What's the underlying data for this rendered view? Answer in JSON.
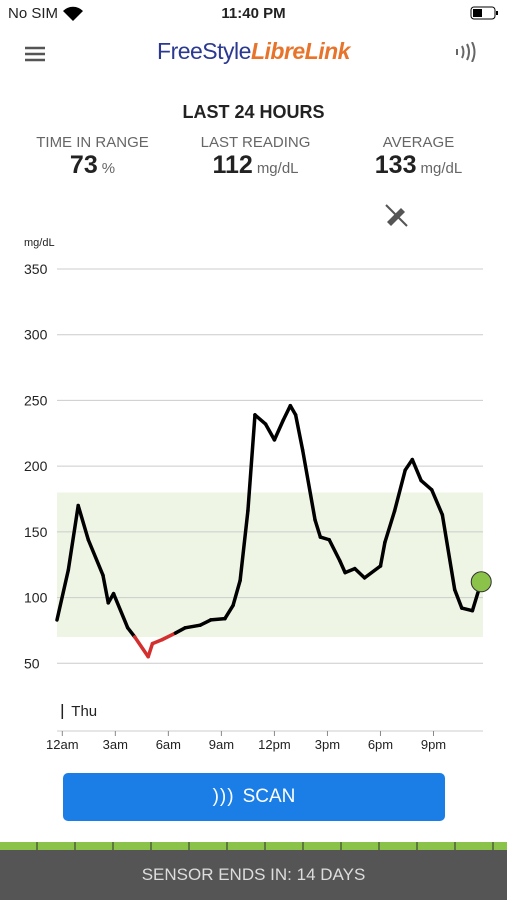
{
  "status_bar": {
    "carrier": "No SIM",
    "time": "11:40 PM"
  },
  "header": {
    "brand_1": "FreeStyle",
    "brand_2": "LibreLink"
  },
  "summary": {
    "title": "LAST 24 HOURS",
    "stats": [
      {
        "label": "TIME IN RANGE",
        "value": 73,
        "unit": "%"
      },
      {
        "label": "LAST READING",
        "value": 112,
        "unit": "mg/dL"
      },
      {
        "label": "AVERAGE",
        "value": 133,
        "unit": "mg/dL"
      }
    ]
  },
  "chart_data": {
    "type": "line",
    "y_label": "mg/dL",
    "day_label": "Thu",
    "x": [
      -0.3,
      0.34,
      0.9,
      1.47,
      2.3,
      2.6,
      2.9,
      3.7,
      4.1,
      4.86,
      5.1,
      5.65,
      6.4,
      6.95,
      7.8,
      8.4,
      9.2,
      9.66,
      10.06,
      10.5,
      10.9,
      11.5,
      12.0,
      12.5,
      12.9,
      13.2,
      13.6,
      14.3,
      14.6,
      15.1,
      15.7,
      16.0,
      16.55,
      17.1,
      18.0,
      18.25,
      18.8,
      19.4,
      19.8,
      20.3,
      20.9,
      21.5,
      22.2,
      22.6,
      23.2,
      23.7
    ],
    "values": [
      83,
      121,
      170,
      144,
      117,
      96,
      103,
      77,
      70,
      55,
      65,
      68,
      73,
      77,
      79,
      83,
      84,
      94,
      113,
      166,
      239,
      232,
      220,
      235,
      246,
      239,
      212,
      159,
      146,
      144,
      128,
      119,
      122,
      115,
      124,
      142,
      166,
      197,
      205,
      189,
      182,
      163,
      106,
      92,
      90,
      112
    ],
    "color": "#000000",
    "low_color": "#d32f2f",
    "target_range": [
      70,
      180
    ],
    "target_color": "#eef5e4",
    "last_point_color": "#8bc34a",
    "xlim": [
      -0.3,
      23.8
    ],
    "ylim": [
      0,
      350
    ],
    "xticks": [
      {
        "value": 0,
        "label": "12am"
      },
      {
        "value": 3,
        "label": "3am"
      },
      {
        "value": 6,
        "label": "6am"
      },
      {
        "value": 9,
        "label": "9am"
      },
      {
        "value": 12,
        "label": "12pm"
      },
      {
        "value": 15,
        "label": "3pm"
      },
      {
        "value": 18,
        "label": "6pm"
      },
      {
        "value": 21,
        "label": "9pm"
      }
    ],
    "yticks": [
      50,
      100,
      150,
      200,
      250,
      300,
      350
    ],
    "grid": true
  },
  "scan_button": {
    "label": "SCAN"
  },
  "footer": {
    "text": "SENSOR ENDS IN: 14 DAYS"
  }
}
